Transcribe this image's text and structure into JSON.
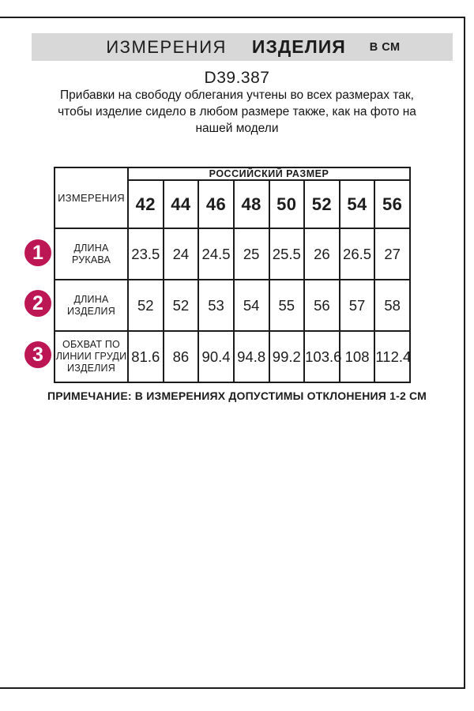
{
  "header": {
    "title_regular": "ИЗМЕРЕНИЯ",
    "title_bold": "ИЗДЕЛИЯ",
    "units": "В СМ"
  },
  "product": {
    "code": "D39.387",
    "description": "Прибавки на свободу облегания учтены во всех размерах так, чтобы изделие сидело в любом размере также, как на фото на нашей модели"
  },
  "table": {
    "measurements_header": "ИЗМЕРЕНИЯ",
    "size_group_header": "РОССИЙСКИЙ РАЗМЕР",
    "sizes": [
      "42",
      "44",
      "46",
      "48",
      "50",
      "52",
      "54",
      "56"
    ],
    "rows": [
      {
        "num": "1",
        "label": "ДЛИНА РУКАВА",
        "values": [
          "23.5",
          "24",
          "24.5",
          "25",
          "25.5",
          "26",
          "26.5",
          "27"
        ]
      },
      {
        "num": "2",
        "label": "ДЛИНА\nИЗДЕЛИЯ",
        "values": [
          "52",
          "52",
          "53",
          "54",
          "55",
          "56",
          "57",
          "58"
        ]
      },
      {
        "num": "3",
        "label": "ОБХВАТ ПО\nЛИНИИ ГРУДИ\nИЗДЕЛИЯ",
        "values": [
          "81.6",
          "86",
          "90.4",
          "94.8",
          "99.2",
          "103.6",
          "108",
          "112.4"
        ]
      }
    ]
  },
  "note": "ПРИМЕЧАНИЕ: В ИЗМЕРЕНИЯХ ДОПУСТИМЫ ОТКЛОНЕНИЯ 1-2 СМ",
  "colors": {
    "badge_accent": "#bc1754",
    "title_bar_background": "#d8d8d8",
    "border": "#1c1c1c"
  }
}
